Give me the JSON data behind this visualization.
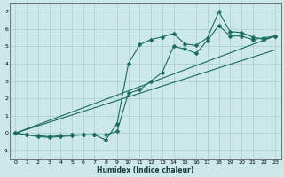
{
  "title": "",
  "xlabel": "Humidex (Indice chaleur)",
  "bg_color": "#cce8e8",
  "grid_color": "#aacece",
  "line_color": "#1a6b5a",
  "xlim": [
    -0.5,
    23.5
  ],
  "ylim": [
    -1.5,
    7.5
  ],
  "yticks": [
    -1,
    0,
    1,
    2,
    3,
    4,
    5,
    6,
    7
  ],
  "xticks": [
    0,
    1,
    2,
    3,
    4,
    5,
    6,
    7,
    8,
    9,
    10,
    11,
    12,
    13,
    14,
    15,
    16,
    17,
    18,
    19,
    20,
    21,
    22,
    23
  ],
  "series": [
    {
      "x": [
        0,
        1,
        2,
        3,
        4,
        5,
        6,
        7,
        8,
        9,
        10,
        11,
        12,
        13,
        14,
        15,
        16,
        17,
        18,
        19,
        20,
        21,
        22,
        23
      ],
      "y": [
        0,
        -0.1,
        -0.15,
        -0.2,
        -0.15,
        -0.1,
        -0.1,
        -0.1,
        -0.4,
        0.55,
        4.0,
        5.1,
        5.4,
        5.55,
        5.75,
        5.15,
        5.05,
        5.5,
        7.0,
        5.85,
        5.8,
        5.55,
        5.4,
        5.6
      ],
      "marker": "D",
      "markersize": 2.5,
      "lw": 0.8
    },
    {
      "x": [
        0,
        1,
        2,
        3,
        4,
        5,
        6,
        7,
        8,
        9,
        10,
        11,
        12,
        13,
        14,
        15,
        16,
        17,
        18,
        19,
        20,
        21,
        22,
        23
      ],
      "y": [
        0,
        -0.1,
        -0.2,
        -0.25,
        -0.2,
        -0.15,
        -0.1,
        -0.1,
        -0.1,
        0.1,
        2.3,
        2.5,
        3.0,
        3.5,
        5.0,
        4.85,
        4.6,
        5.35,
        6.2,
        5.6,
        5.6,
        5.4,
        5.5,
        5.6
      ],
      "marker": "D",
      "markersize": 2.5,
      "lw": 0.8
    },
    {
      "x": [
        0,
        23
      ],
      "y": [
        0,
        5.6
      ],
      "marker": null,
      "markersize": 0,
      "lw": 0.8
    },
    {
      "x": [
        0,
        23
      ],
      "y": [
        0,
        4.8
      ],
      "marker": null,
      "markersize": 0,
      "lw": 0.8
    }
  ]
}
